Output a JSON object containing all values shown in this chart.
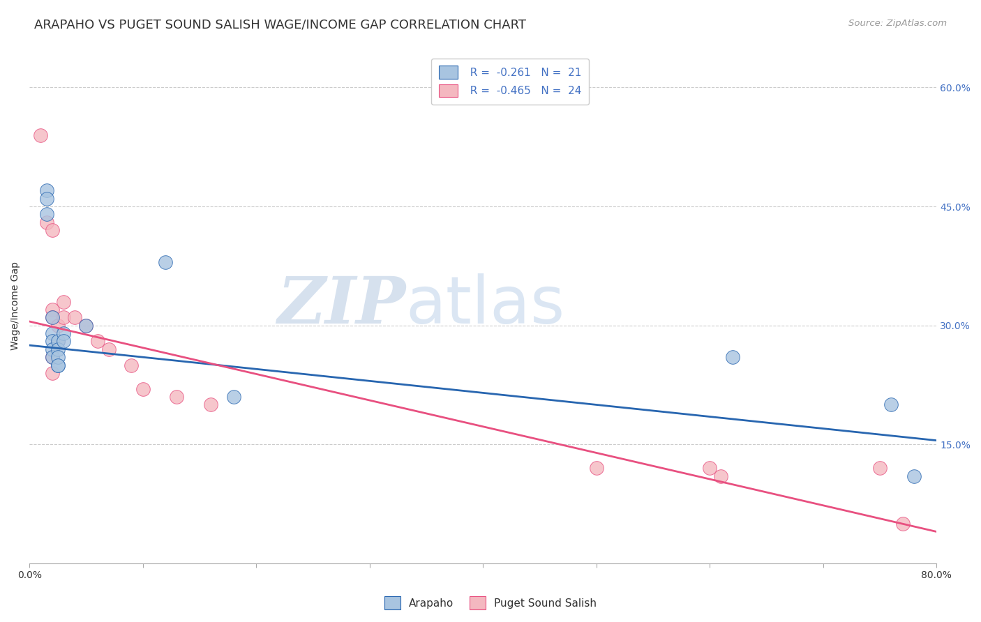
{
  "title": "ARAPAHO VS PUGET SOUND SALISH WAGE/INCOME GAP CORRELATION CHART",
  "source": "Source: ZipAtlas.com",
  "ylabel": "Wage/Income Gap",
  "xlim": [
    0.0,
    0.8
  ],
  "ylim": [
    0.0,
    0.65
  ],
  "yticks_right": [
    0.15,
    0.3,
    0.45,
    0.6
  ],
  "yticklabels_right": [
    "15.0%",
    "30.0%",
    "45.0%",
    "60.0%"
  ],
  "arapaho_x": [
    0.015,
    0.015,
    0.015,
    0.02,
    0.02,
    0.02,
    0.02,
    0.02,
    0.025,
    0.025,
    0.025,
    0.025,
    0.025,
    0.03,
    0.03,
    0.05,
    0.12,
    0.18,
    0.62,
    0.76,
    0.78
  ],
  "arapaho_y": [
    0.47,
    0.46,
    0.44,
    0.31,
    0.29,
    0.28,
    0.27,
    0.26,
    0.25,
    0.28,
    0.27,
    0.26,
    0.25,
    0.29,
    0.28,
    0.3,
    0.38,
    0.21,
    0.26,
    0.2,
    0.11
  ],
  "puget_x": [
    0.01,
    0.015,
    0.02,
    0.02,
    0.02,
    0.02,
    0.02,
    0.025,
    0.025,
    0.03,
    0.03,
    0.04,
    0.05,
    0.06,
    0.07,
    0.09,
    0.1,
    0.13,
    0.16,
    0.5,
    0.6,
    0.61,
    0.75,
    0.77
  ],
  "puget_y": [
    0.54,
    0.43,
    0.42,
    0.32,
    0.31,
    0.26,
    0.24,
    0.3,
    0.28,
    0.33,
    0.31,
    0.31,
    0.3,
    0.28,
    0.27,
    0.25,
    0.22,
    0.21,
    0.2,
    0.12,
    0.12,
    0.11,
    0.12,
    0.05
  ],
  "arapaho_R": -0.261,
  "arapaho_N": 21,
  "puget_R": -0.465,
  "puget_N": 24,
  "arapaho_color": "#a8c4e0",
  "puget_color": "#f4b8c0",
  "arapaho_line_color": "#2866b0",
  "puget_line_color": "#e85080",
  "arapaho_line_x0": 0.0,
  "arapaho_line_y0": 0.275,
  "arapaho_line_x1": 0.8,
  "arapaho_line_y1": 0.155,
  "puget_line_x0": 0.0,
  "puget_line_y0": 0.305,
  "puget_line_x1": 0.8,
  "puget_line_y1": 0.04,
  "legend_label_arapaho": "Arapaho",
  "legend_label_puget": "Puget Sound Salish",
  "watermark_zip": "ZIP",
  "watermark_atlas": "atlas",
  "background_color": "#ffffff",
  "grid_color": "#cccccc",
  "title_fontsize": 13,
  "axis_label_fontsize": 10,
  "tick_fontsize": 10,
  "legend_fontsize": 11
}
